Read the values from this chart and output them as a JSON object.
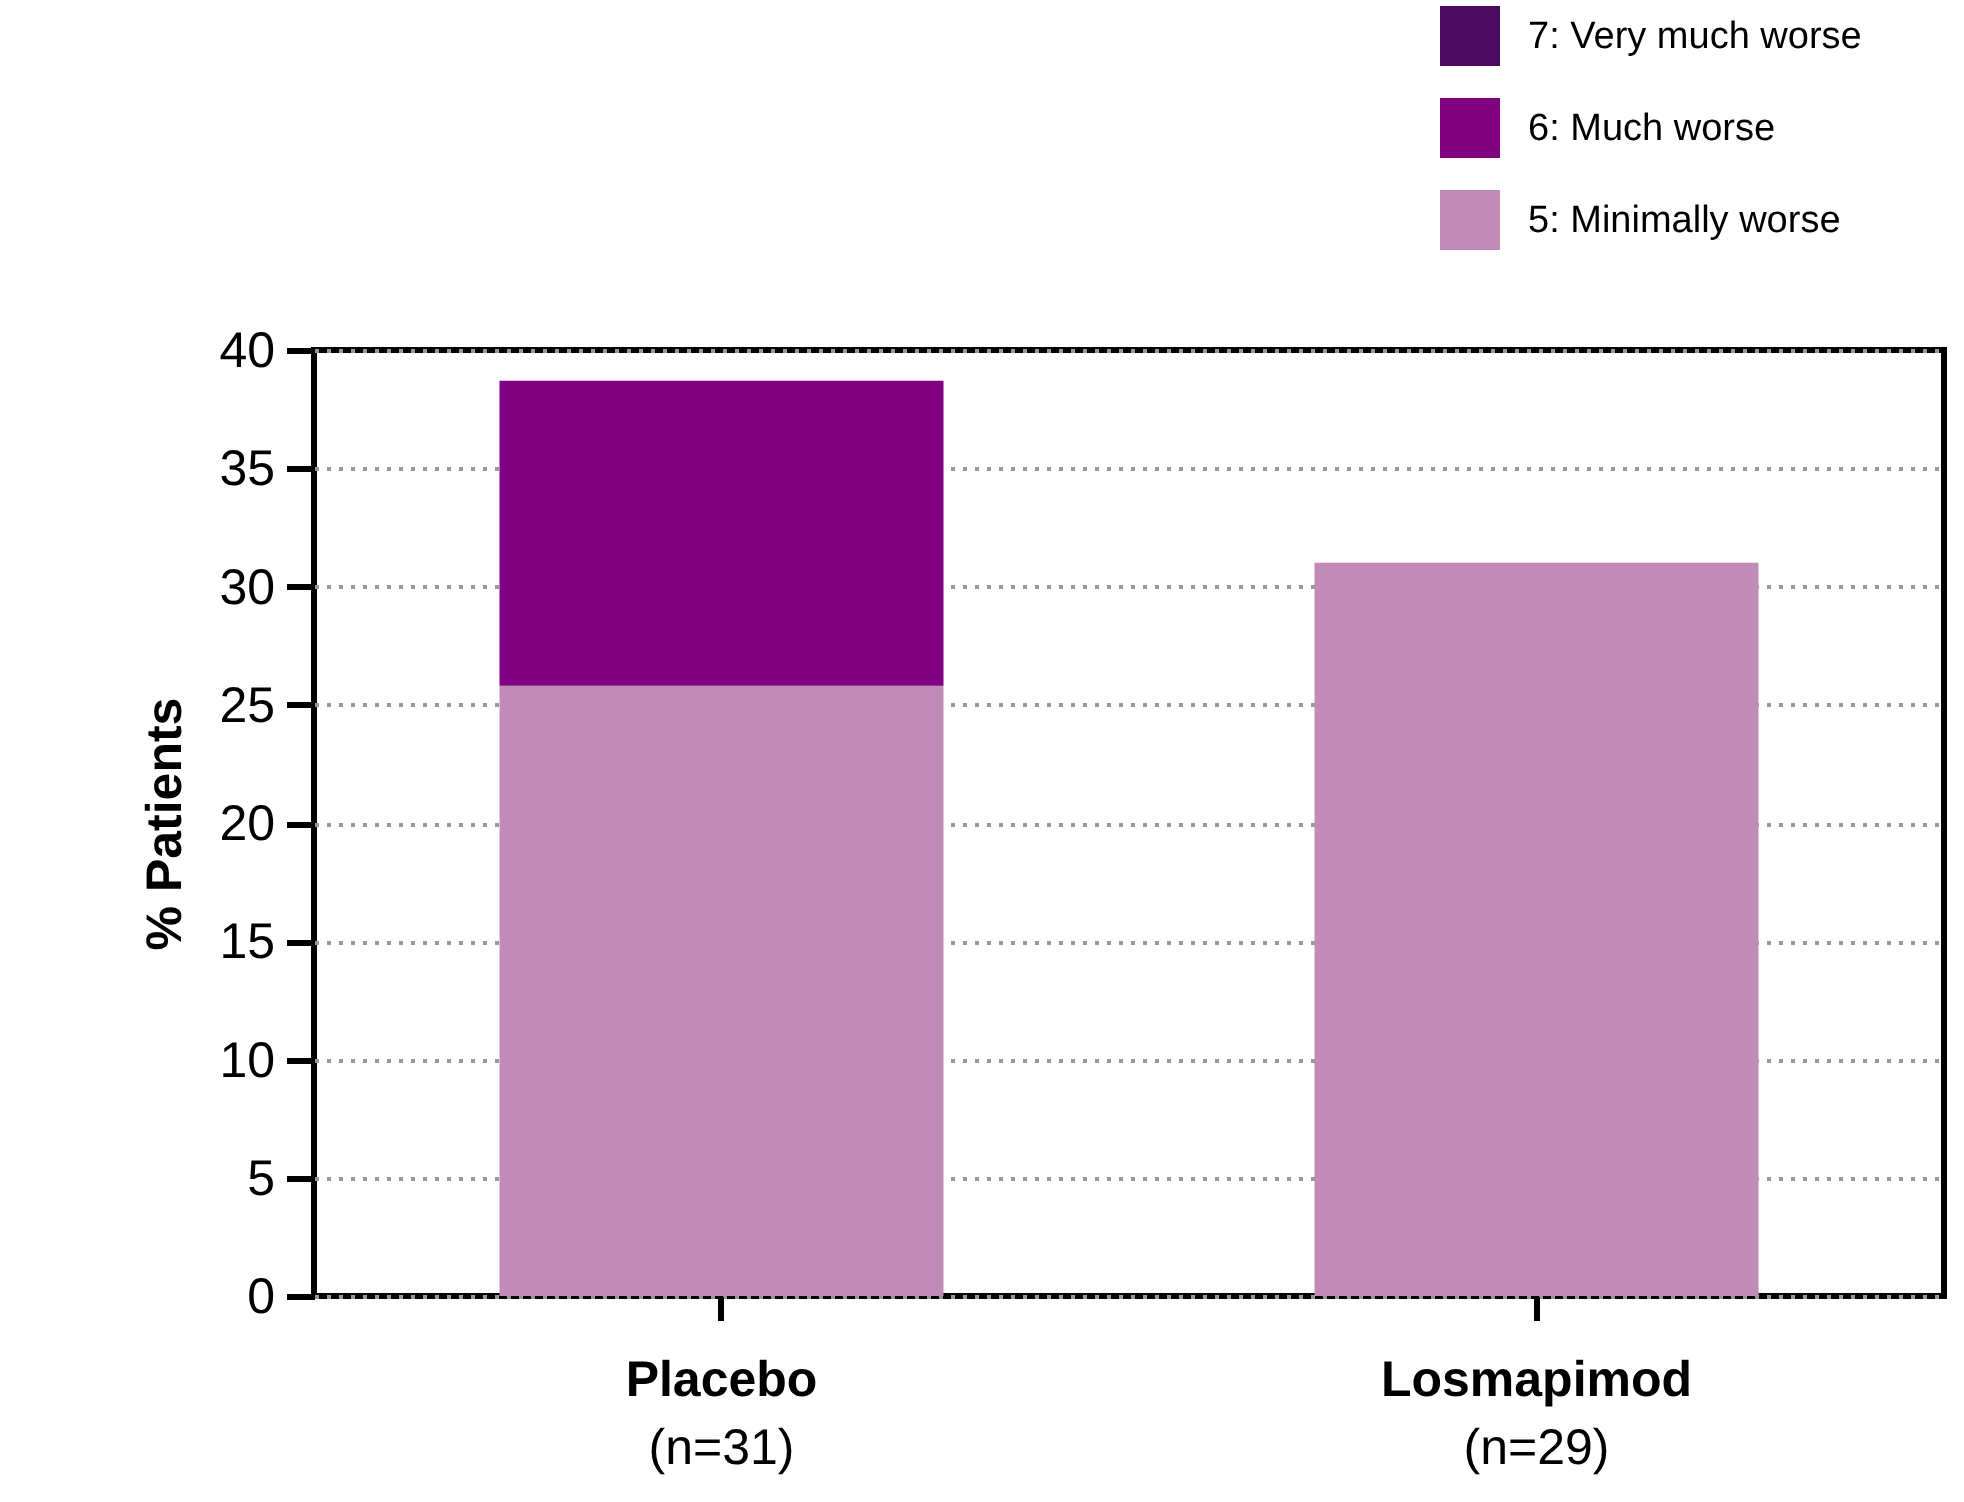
{
  "chart_data": {
    "type": "bar",
    "stacked": true,
    "categories": [
      "Placebo\n(n=31)",
      "Losmapimod\n(n=29)"
    ],
    "ylabel": "% Patients",
    "ylim": [
      0,
      40
    ],
    "yticks": [
      0,
      5,
      10,
      15,
      20,
      25,
      30,
      35,
      40
    ],
    "grid": "y",
    "legend": "top right",
    "series": [
      {
        "name": "5: Minimally worse",
        "color": "#c18bb8",
        "values": [
          25.8,
          31.0
        ]
      },
      {
        "name": "6: Much worse",
        "color": "#80007f",
        "values": [
          12.9,
          0
        ]
      },
      {
        "name": "7: Very much worse",
        "color": "#4a0a5f",
        "values": [
          0,
          0
        ]
      }
    ]
  }
}
